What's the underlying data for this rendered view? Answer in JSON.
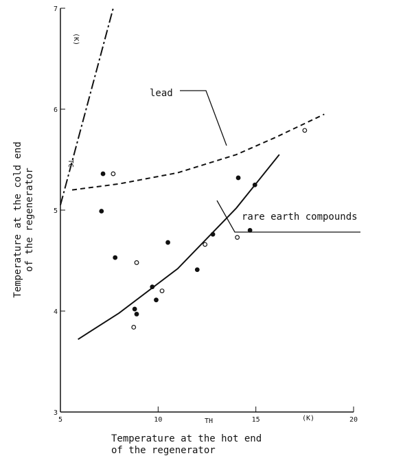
{
  "chart_data": {
    "type": "scatter",
    "x_label_lines": [
      "Temperature at the hot end",
      "of the regenerator"
    ],
    "y_label_lines": [
      "Temperature at the cold end",
      "of the regenerator"
    ],
    "x_symbol": "TH",
    "x_unit": "(K)",
    "y_symbol": "TC",
    "y_unit": "(K)",
    "xlim": [
      5,
      20
    ],
    "ylim": [
      3,
      7
    ],
    "xticks": [
      5,
      10,
      15,
      20
    ],
    "yticks": [
      3,
      4,
      5,
      6,
      7
    ],
    "points": {
      "x": [
        7.18,
        7.7,
        7.1,
        7.8,
        8.9,
        8.8,
        8.9,
        8.75,
        9.7,
        9.9,
        10.2,
        10.5,
        12.0,
        12.4,
        12.8,
        14.1,
        14.05,
        14.7,
        14.95,
        17.5
      ],
      "y": [
        5.36,
        5.36,
        4.99,
        4.53,
        4.48,
        4.02,
        3.97,
        3.84,
        4.24,
        4.11,
        4.2,
        4.68,
        4.41,
        4.66,
        4.76,
        5.32,
        4.73,
        4.8,
        5.25,
        5.79
      ],
      "color": "#111111"
    },
    "lines": [
      {
        "name": "lead",
        "style": "dashed",
        "color": "#111111",
        "x": [
          5.6,
          8,
          11,
          14,
          16,
          18.5
        ],
        "values": [
          5.2,
          5.26,
          5.37,
          5.55,
          5.72,
          5.95
        ]
      },
      {
        "name": "rare earth compounds",
        "style": "solid",
        "color": "#111111",
        "x": [
          5.9,
          8,
          11,
          14,
          16.2
        ],
        "values": [
          3.72,
          3.98,
          4.42,
          5.02,
          5.55
        ]
      },
      {
        "style": "dashdot",
        "color": "#111111",
        "x": [
          5,
          7.7
        ],
        "values": [
          5.05,
          7
        ]
      }
    ]
  }
}
